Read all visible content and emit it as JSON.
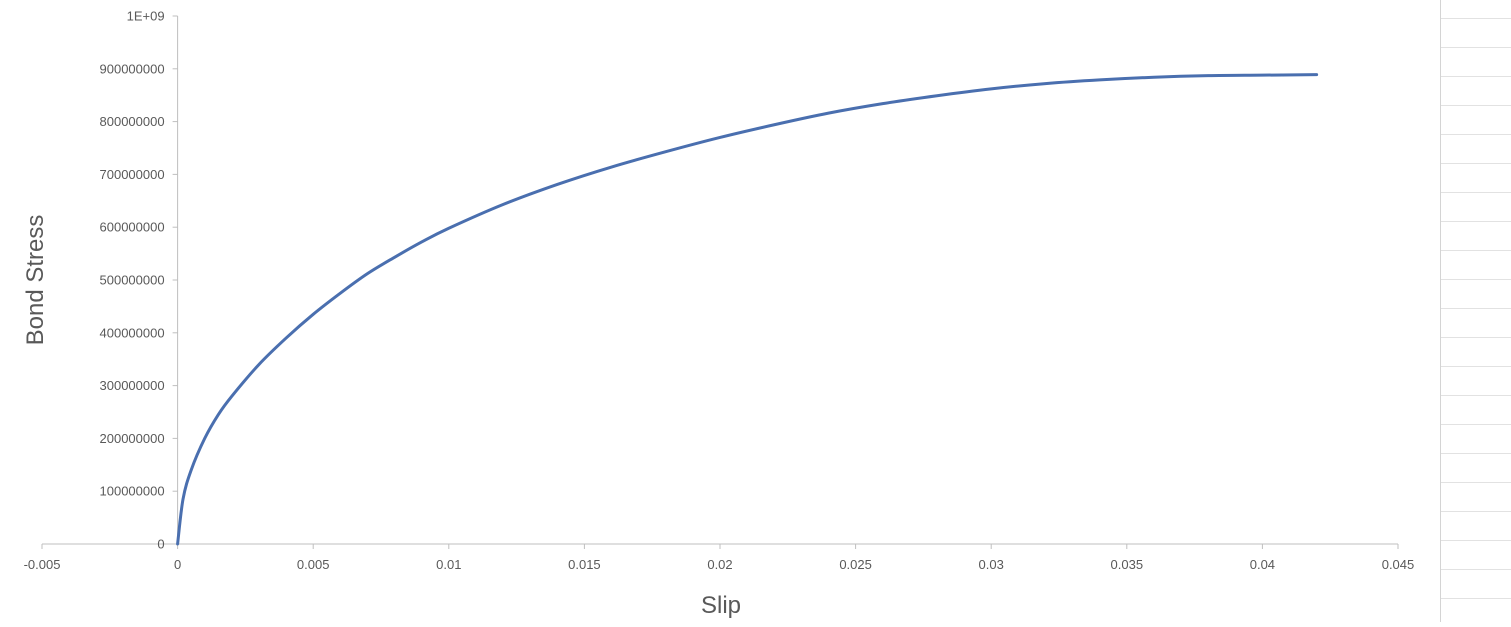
{
  "chart_data": {
    "type": "line",
    "title": "",
    "xlabel": "Slip",
    "ylabel": "Bond Stress",
    "xlim": [
      -0.005,
      0.045
    ],
    "ylim": [
      0,
      1000000000
    ],
    "x_ticks": [
      "-0.005",
      "0",
      "0.005",
      "0.01",
      "0.015",
      "0.02",
      "0.025",
      "0.03",
      "0.035",
      "0.04",
      "0.045"
    ],
    "y_ticks": [
      "0",
      "100000000",
      "200000000",
      "300000000",
      "400000000",
      "500000000",
      "600000000",
      "700000000",
      "800000000",
      "900000000",
      "1E+09"
    ],
    "grid": false,
    "legend": "none",
    "series": [
      {
        "color": "#4a6faf",
        "x": [
          0,
          0.0002,
          0.0005,
          0.001,
          0.0015,
          0.002,
          0.003,
          0.004,
          0.005,
          0.006,
          0.007,
          0.008,
          0.009,
          0.01,
          0.012,
          0.014,
          0.016,
          0.018,
          0.02,
          0.022,
          0.024,
          0.026,
          0.028,
          0.03,
          0.032,
          0.034,
          0.036,
          0.038,
          0.04,
          0.042
        ],
        "y": [
          0,
          85000000,
          140000000,
          200000000,
          245000000,
          280000000,
          340000000,
          390000000,
          435000000,
          475000000,
          512000000,
          543000000,
          572000000,
          598000000,
          643000000,
          681000000,
          714000000,
          743000000,
          770000000,
          794000000,
          816000000,
          834000000,
          849000000,
          862000000,
          872000000,
          879000000,
          884000000,
          887000000,
          888000000,
          889000000
        ]
      }
    ]
  }
}
